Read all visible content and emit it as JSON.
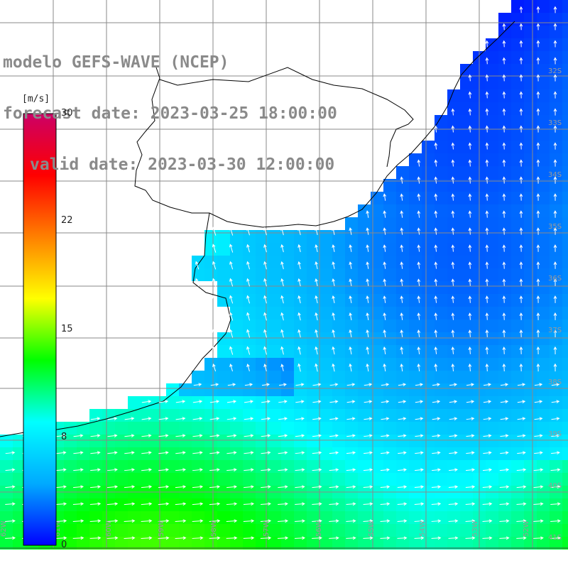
{
  "title": {
    "line1": "modelo GEFS-WAVE (NCEP)",
    "line2": "forecast date: 2023-03-25 18:00:00",
    "line3": "valid date: 2023-03-30 12:00:00"
  },
  "colorbar": {
    "unit": "[m/s]",
    "ticks": [
      {
        "value": 30,
        "label": "30"
      },
      {
        "value": 22,
        "label": "22"
      },
      {
        "value": 15,
        "label": "15"
      },
      {
        "value": 8,
        "label": "8"
      },
      {
        "value": 0,
        "label": "0"
      }
    ],
    "range": [
      0,
      30
    ],
    "colors": [
      "#0000ff",
      "#00aaff",
      "#00ffff",
      "#00ff00",
      "#ffff00",
      "#ff8000",
      "#ff0000",
      "#cc0066"
    ]
  },
  "map": {
    "land_color": "#ffffff",
    "coast_color": "#000000",
    "grid_color": "#8a8a8a",
    "arrow_color": "#ffffff",
    "lat_labels": [
      "32S",
      "33S",
      "34S",
      "35S",
      "36S",
      "37S",
      "38S",
      "39S",
      "40S",
      "41S"
    ],
    "lon_labels": [
      "62W",
      "61W",
      "60W",
      "59W",
      "58W",
      "57W",
      "56W",
      "55W",
      "54W",
      "53W",
      "52W"
    ]
  }
}
